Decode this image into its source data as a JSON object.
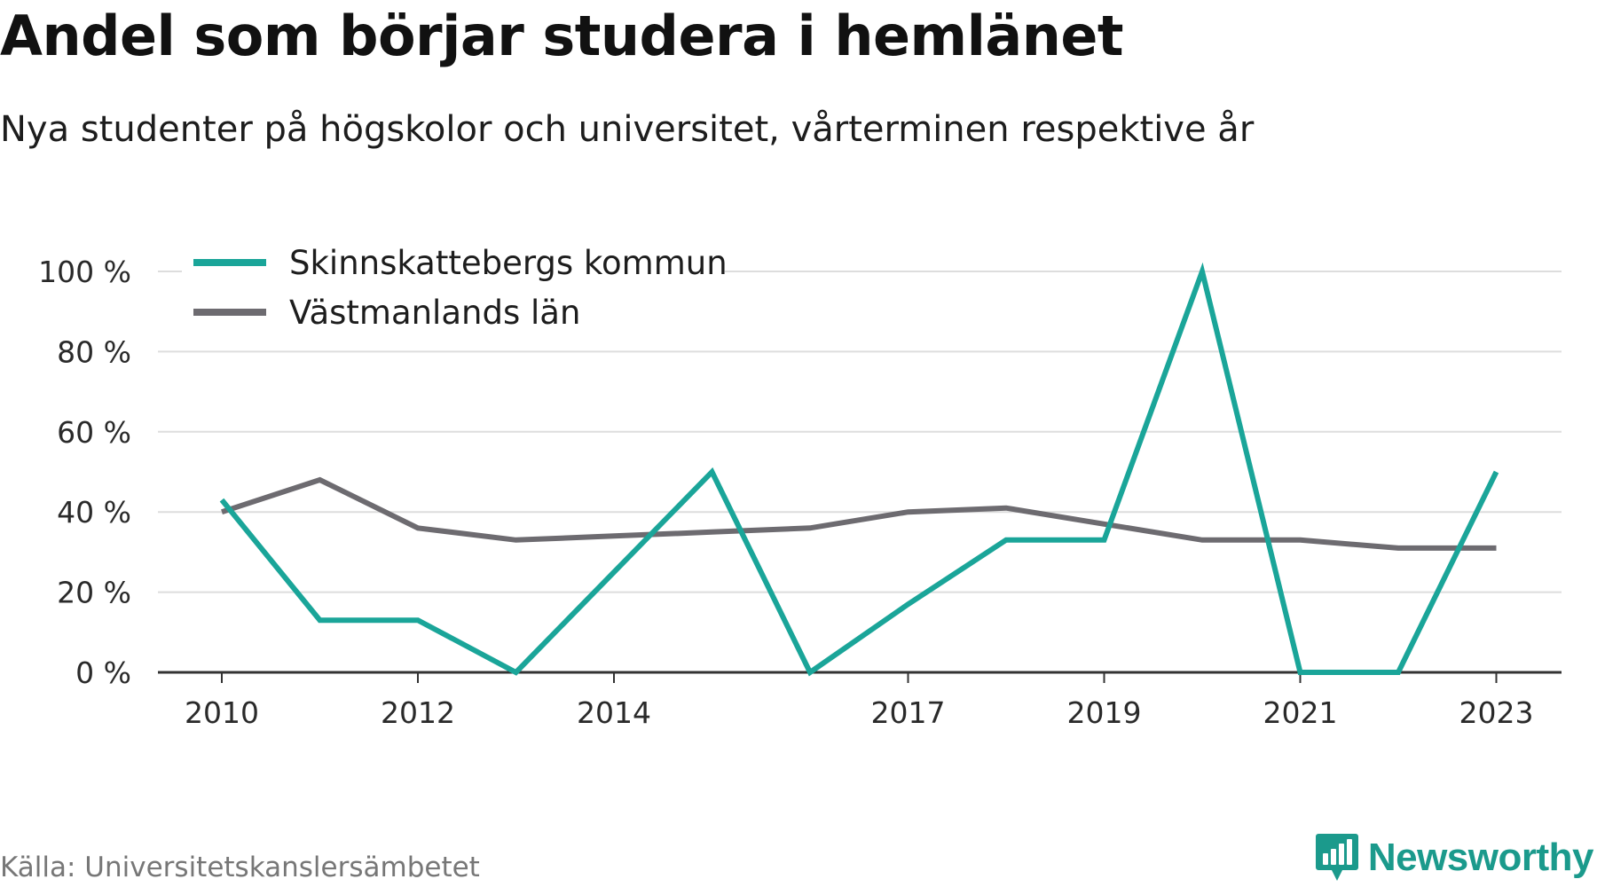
{
  "title": "Andel som börjar studera i hemlänet",
  "subtitle": "Nya studenter på högskolor och universitet, vårterminen respektive år",
  "source": "Källa: Universitetskanslersämbetet",
  "brand": {
    "name": "Newsworthy",
    "icon": "bar-chart-speech-bubble-icon",
    "color": "#1b9a8c"
  },
  "colors": {
    "series_1": "#1aa599",
    "series_2": "#6d6b70",
    "grid": "#dddddd",
    "axis": "#333333"
  },
  "chart_data": {
    "type": "line",
    "x": [
      2010,
      2011,
      2012,
      2013,
      2014,
      2015,
      2016,
      2017,
      2018,
      2019,
      2020,
      2021,
      2022,
      2023
    ],
    "x_tick_labels": [
      "2010",
      "2012",
      "2014",
      "2017",
      "2019",
      "2021",
      "2023"
    ],
    "y_tick_labels": [
      "0 %",
      "20 %",
      "40 %",
      "60 %",
      "80 %",
      "100 %"
    ],
    "ylim": [
      0,
      100
    ],
    "grid": true,
    "legend_position": "top-left",
    "series": [
      {
        "name": "Skinnskattebergs kommun",
        "color": "#1aa599",
        "values": [
          43,
          13,
          13,
          0,
          25,
          50,
          0,
          17,
          33,
          33,
          100,
          0,
          0,
          50
        ]
      },
      {
        "name": "Västmanlands län",
        "color": "#6d6b70",
        "values": [
          40,
          48,
          36,
          33,
          34,
          35,
          36,
          40,
          41,
          37,
          33,
          33,
          31,
          31
        ]
      }
    ]
  }
}
